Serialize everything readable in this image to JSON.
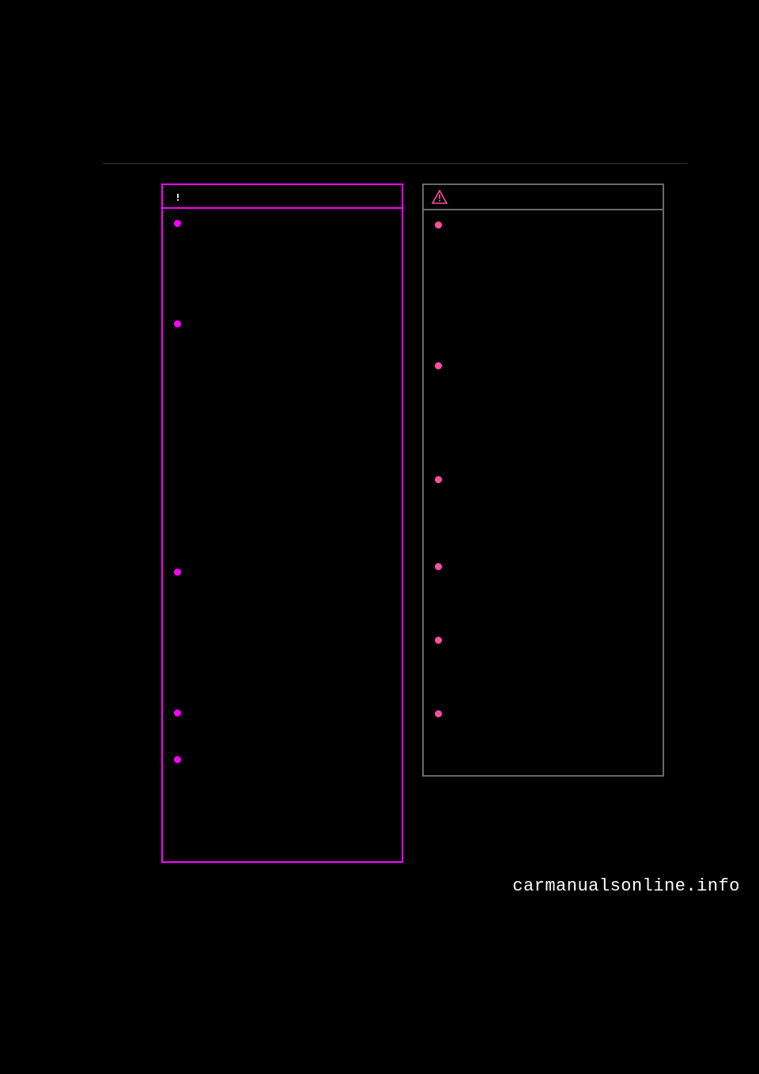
{
  "left_box": {
    "header_label": "WARNING",
    "icon_name": "warning-triangle-solid-icon",
    "border_color": "#ff00ff",
    "bullet_color": "#ff00ff",
    "header_text_color": "#000000",
    "items": [
      {
        "lines": 7
      },
      {
        "lines": 18
      },
      {
        "lines": 10
      },
      {
        "lines": 3
      },
      {
        "lines": 7
      }
    ]
  },
  "right_box": {
    "header_label": "",
    "icon_name": "warning-triangle-outline-icon",
    "border_color": "#6a6a6a",
    "bullet_color": "#ff4da6",
    "items": [
      {
        "lines": 10
      },
      {
        "lines": 8
      },
      {
        "lines": 6
      },
      {
        "lines": 5
      },
      {
        "lines": 5
      },
      {
        "lines": 4
      }
    ]
  },
  "footer": "carmanualsonline.info",
  "page_bg": "#000000",
  "line_color": "#3a3a3a"
}
